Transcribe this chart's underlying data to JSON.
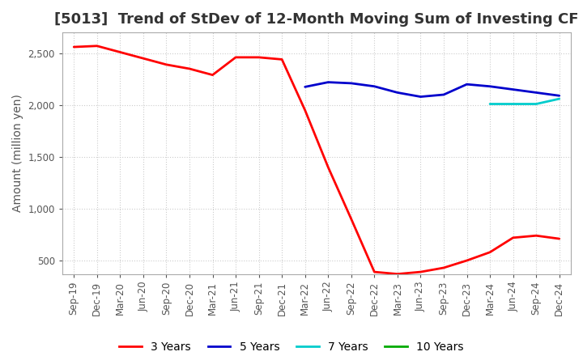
{
  "title": "[5013]  Trend of StDev of 12-Month Moving Sum of Investing CF",
  "ylabel": "Amount (million yen)",
  "background_color": "#ffffff",
  "grid_color": "#cccccc",
  "x_labels": [
    "Sep-19",
    "Dec-19",
    "Mar-20",
    "Jun-20",
    "Sep-20",
    "Dec-20",
    "Mar-21",
    "Jun-21",
    "Sep-21",
    "Dec-21",
    "Mar-22",
    "Jun-22",
    "Sep-22",
    "Dec-22",
    "Mar-23",
    "Jun-23",
    "Sep-23",
    "Dec-23",
    "Mar-24",
    "Jun-24",
    "Sep-24",
    "Dec-24"
  ],
  "series": {
    "3 Years": {
      "color": "#ff0000",
      "data": [
        2560,
        2570,
        2510,
        2450,
        2390,
        2350,
        2290,
        2460,
        2460,
        2440,
        1950,
        1400,
        900,
        390,
        370,
        390,
        430,
        500,
        580,
        720,
        740,
        710
      ]
    },
    "5 Years": {
      "color": "#0000cc",
      "data": [
        null,
        null,
        null,
        null,
        null,
        null,
        null,
        null,
        null,
        null,
        2175,
        2220,
        2210,
        2180,
        2120,
        2080,
        2100,
        2200,
        2180,
        2150,
        2120,
        2090
      ]
    },
    "7 Years": {
      "color": "#00cccc",
      "data": [
        null,
        null,
        null,
        null,
        null,
        null,
        null,
        null,
        null,
        null,
        null,
        null,
        null,
        null,
        null,
        null,
        null,
        null,
        2010,
        2010,
        2010,
        2060
      ]
    },
    "10 Years": {
      "color": "#00aa00",
      "data": [
        null,
        null,
        null,
        null,
        null,
        null,
        null,
        null,
        null,
        null,
        null,
        null,
        null,
        null,
        null,
        null,
        null,
        null,
        null,
        null,
        null,
        null
      ]
    }
  },
  "ylim": [
    370,
    2700
  ],
  "yticks": [
    500,
    1000,
    1500,
    2000,
    2500
  ],
  "legend_entries": [
    "3 Years",
    "5 Years",
    "7 Years",
    "10 Years"
  ],
  "legend_colors": [
    "#ff0000",
    "#0000cc",
    "#00cccc",
    "#00aa00"
  ],
  "title_fontsize": 13,
  "axis_fontsize": 10,
  "tick_fontsize": 8.5
}
